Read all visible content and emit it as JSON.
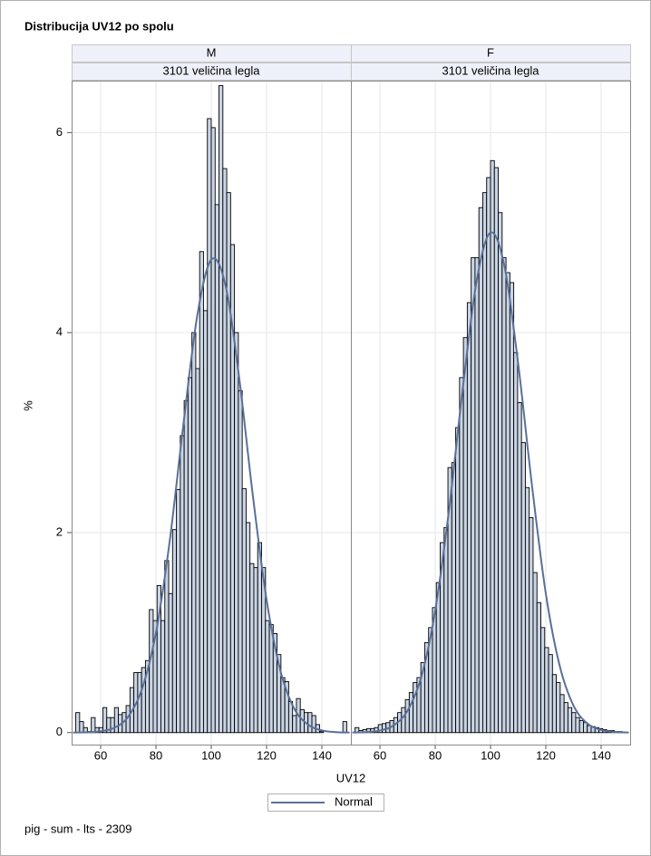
{
  "chart_data": {
    "type": "histogram",
    "title": "Distribucija UV12 po spolu",
    "xlabel": "UV12",
    "ylabel": "%",
    "xlim": [
      49.5,
      150.5
    ],
    "ylim": [
      -0.12,
      6.52
    ],
    "xticks": [
      60,
      80,
      100,
      120,
      140
    ],
    "yticks": [
      0,
      2,
      4,
      6
    ],
    "grid": true,
    "bar_color": "#cad5e5",
    "curve_color": "#5a7099",
    "curve_name": "Normal",
    "legend": "bottom",
    "footnote": "pig - sum - lts - 2309",
    "bins": [
      51,
      52.4,
      53.8,
      55.2,
      56.6,
      58,
      59.4,
      60.8,
      62.2,
      63.6,
      65,
      66.4,
      67.8,
      69.2,
      70.6,
      72,
      73.4,
      74.8,
      76.2,
      77.6,
      79,
      80.4,
      81.8,
      83.2,
      84.6,
      86,
      87.4,
      88.8,
      90.2,
      91.6,
      93,
      94.4,
      95.8,
      97.2,
      98.6,
      100,
      101.4,
      102.8,
      104.2,
      105.6,
      107,
      108.4,
      109.8,
      111.2,
      112.6,
      114,
      115.4,
      116.8,
      118.2,
      119.6,
      121,
      122.4,
      123.8,
      125.2,
      126.6,
      128,
      129.4,
      130.8,
      132.2,
      133.6,
      135,
      136.4,
      137.8,
      139.2,
      140.6,
      142,
      143.4,
      144.8,
      146.2,
      147.6,
      149
    ],
    "panels": [
      {
        "label": "M",
        "sublabel": "3101 veličina legla",
        "counts": [
          0.2,
          0.11,
          0.05,
          0.01,
          0.15,
          0.05,
          0.05,
          0.25,
          0.15,
          0.15,
          0.25,
          0.18,
          0.2,
          0.27,
          0.45,
          0.6,
          0.6,
          0.65,
          0.72,
          1.23,
          1.12,
          1.47,
          1.12,
          1.72,
          1.39,
          2.03,
          2.43,
          2.97,
          3.32,
          3.55,
          4.0,
          3.64,
          4.81,
          4.22,
          6.14,
          6.05,
          5.28,
          6.47,
          5.64,
          5.4,
          4.88,
          4.0,
          3.42,
          2.44,
          2.1,
          1.69,
          1.65,
          1.9,
          1.65,
          1.12,
          1.08,
          0.99,
          0.78,
          0.55,
          0.51,
          0.31,
          0.17,
          0.34,
          0.23,
          0.2,
          0.2,
          0.17,
          0.08,
          0.01,
          0,
          0,
          0,
          0,
          0,
          0.11
        ],
        "normal": {
          "x": [
            50,
            55,
            60,
            65,
            70,
            75,
            80,
            85,
            90,
            95,
            100,
            105,
            110,
            115,
            120,
            125,
            130,
            135,
            140,
            145,
            150
          ],
          "y": [
            0.0005,
            0.003,
            0.013,
            0.049,
            0.16,
            0.44,
            1.0,
            1.92,
            3.1,
            4.18,
            4.73,
            4.49,
            3.57,
            2.38,
            1.33,
            0.62,
            0.24,
            0.08,
            0.022,
            0.005,
            0.001
          ]
        }
      },
      {
        "label": "F",
        "sublabel": "3101 veličina legla",
        "counts": [
          0.05,
          0.02,
          0.03,
          0.04,
          0.04,
          0.05,
          0.08,
          0.09,
          0.1,
          0.12,
          0.15,
          0.2,
          0.25,
          0.33,
          0.4,
          0.5,
          0.55,
          0.7,
          0.9,
          1.05,
          1.25,
          1.5,
          1.9,
          2.05,
          2.65,
          2.7,
          3.05,
          3.55,
          3.95,
          4.3,
          4.75,
          4.75,
          5.25,
          5.4,
          5.55,
          5.72,
          5.65,
          5.2,
          4.75,
          4.6,
          4.5,
          3.8,
          3.3,
          2.9,
          2.45,
          2.15,
          1.6,
          1.3,
          1.05,
          0.85,
          0.78,
          0.58,
          0.5,
          0.38,
          0.3,
          0.25,
          0.2,
          0.15,
          0.12,
          0.1,
          0.07,
          0.06,
          0.05,
          0.04,
          0.03,
          0.02,
          0.02,
          0.01,
          0.01,
          0
        ],
        "normal": {
          "x": [
            50,
            55,
            60,
            65,
            70,
            75,
            80,
            85,
            90,
            95,
            100,
            105,
            110,
            115,
            120,
            125,
            130,
            135,
            140,
            145,
            150
          ],
          "y": [
            0.001,
            0.005,
            0.02,
            0.073,
            0.22,
            0.56,
            1.22,
            2.23,
            3.45,
            4.52,
            5.0,
            4.67,
            3.69,
            2.47,
            1.39,
            0.67,
            0.27,
            0.092,
            0.027,
            0.006,
            0.001
          ]
        }
      }
    ]
  }
}
